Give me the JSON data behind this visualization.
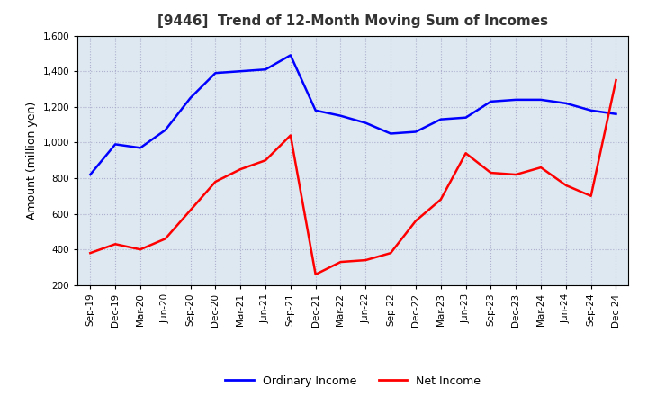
{
  "title": "[9446]  Trend of 12-Month Moving Sum of Incomes",
  "ylabel": "Amount (million yen)",
  "x_labels": [
    "Sep-19",
    "Dec-19",
    "Mar-20",
    "Jun-20",
    "Sep-20",
    "Dec-20",
    "Mar-21",
    "Jun-21",
    "Sep-21",
    "Dec-21",
    "Mar-22",
    "Jun-22",
    "Sep-22",
    "Dec-22",
    "Mar-23",
    "Jun-23",
    "Sep-23",
    "Dec-23",
    "Mar-24",
    "Jun-24",
    "Sep-24",
    "Dec-24"
  ],
  "ordinary_income": [
    820,
    990,
    970,
    1070,
    1250,
    1390,
    1400,
    1410,
    1490,
    1180,
    1150,
    1110,
    1050,
    1060,
    1130,
    1140,
    1230,
    1240,
    1240,
    1220,
    1180,
    1160
  ],
  "net_income": [
    380,
    430,
    400,
    460,
    620,
    780,
    850,
    900,
    1040,
    260,
    330,
    340,
    380,
    560,
    680,
    940,
    830,
    820,
    860,
    760,
    700,
    1350
  ],
  "ordinary_color": "#0000ff",
  "net_color": "#ff0000",
  "ylim_min": 200,
  "ylim_max": 1600,
  "ytick_interval": 200,
  "background_color": "#ffffff",
  "plot_bg_color": "#dde8f0",
  "grid_color": "#aaaacc",
  "legend_labels": [
    "Ordinary Income",
    "Net Income"
  ]
}
